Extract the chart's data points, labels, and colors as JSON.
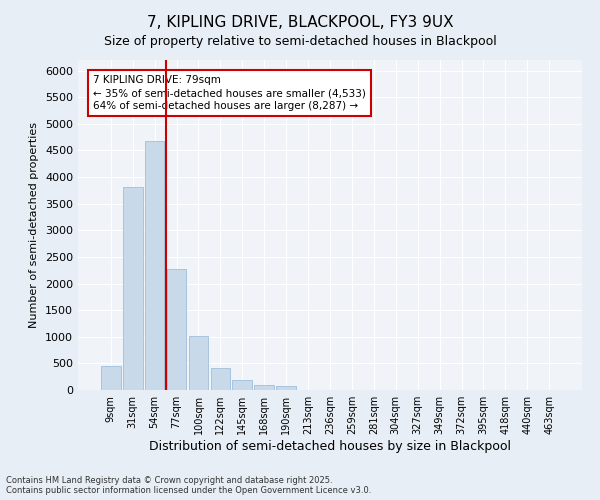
{
  "title": "7, KIPLING DRIVE, BLACKPOOL, FY3 9UX",
  "subtitle": "Size of property relative to semi-detached houses in Blackpool",
  "xlabel": "Distribution of semi-detached houses by size in Blackpool",
  "ylabel": "Number of semi-detached properties",
  "categories": [
    "9sqm",
    "31sqm",
    "54sqm",
    "77sqm",
    "100sqm",
    "122sqm",
    "145sqm",
    "168sqm",
    "190sqm",
    "213sqm",
    "236sqm",
    "259sqm",
    "281sqm",
    "304sqm",
    "327sqm",
    "349sqm",
    "372sqm",
    "395sqm",
    "418sqm",
    "440sqm",
    "463sqm"
  ],
  "values": [
    450,
    3820,
    4670,
    2280,
    1010,
    415,
    195,
    85,
    75,
    0,
    0,
    0,
    0,
    0,
    0,
    0,
    0,
    0,
    0,
    0,
    0
  ],
  "bar_color": "#c8d9ea",
  "bar_edge_color": "#a0bedb",
  "highlight_index": 3,
  "highlight_color": "#cc0000",
  "property_size": 79,
  "annotation_title": "7 KIPLING DRIVE: 79sqm",
  "annotation_line1": "← 35% of semi-detached houses are smaller (4,533)",
  "annotation_line2": "64% of semi-detached houses are larger (8,287) →",
  "annotation_box_color": "#cc0000",
  "ylim": [
    0,
    6200
  ],
  "yticks": [
    0,
    500,
    1000,
    1500,
    2000,
    2500,
    3000,
    3500,
    4000,
    4500,
    5000,
    5500,
    6000
  ],
  "footer_line1": "Contains HM Land Registry data © Crown copyright and database right 2025.",
  "footer_line2": "Contains public sector information licensed under the Open Government Licence v3.0.",
  "bg_color": "#e8eef5",
  "plot_bg_color": "#f0f4f8"
}
